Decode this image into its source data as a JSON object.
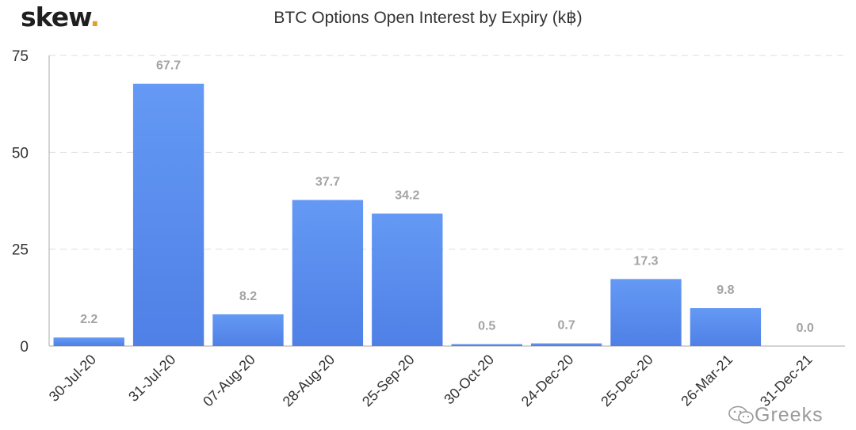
{
  "logo": {
    "text": "skew",
    "dot": ".",
    "dot_color": "#e0a12b"
  },
  "watermark": {
    "text": "Greeks",
    "icon": "wechat-icon"
  },
  "chart_data": {
    "type": "bar",
    "title": "BTC Options Open Interest by Expiry (k฿)",
    "xlabel": "",
    "ylabel": "",
    "ylim": [
      0,
      75
    ],
    "yticks": [
      0,
      25,
      50,
      75
    ],
    "grid": true,
    "bar_color": "#5b8def",
    "categories": [
      "30-Jul-20",
      "31-Jul-20",
      "07-Aug-20",
      "28-Aug-20",
      "25-Sep-20",
      "30-Oct-20",
      "24-Dec-20",
      "25-Dec-20",
      "26-Mar-21",
      "31-Dec-21"
    ],
    "values": [
      2.2,
      67.7,
      8.2,
      37.7,
      34.2,
      0.5,
      0.7,
      17.3,
      9.8,
      0.0
    ],
    "data_labels": [
      "2.2",
      "67.7",
      "8.2",
      "37.7",
      "34.2",
      "0.5",
      "0.7",
      "17.3",
      "9.8",
      "0.0"
    ]
  }
}
